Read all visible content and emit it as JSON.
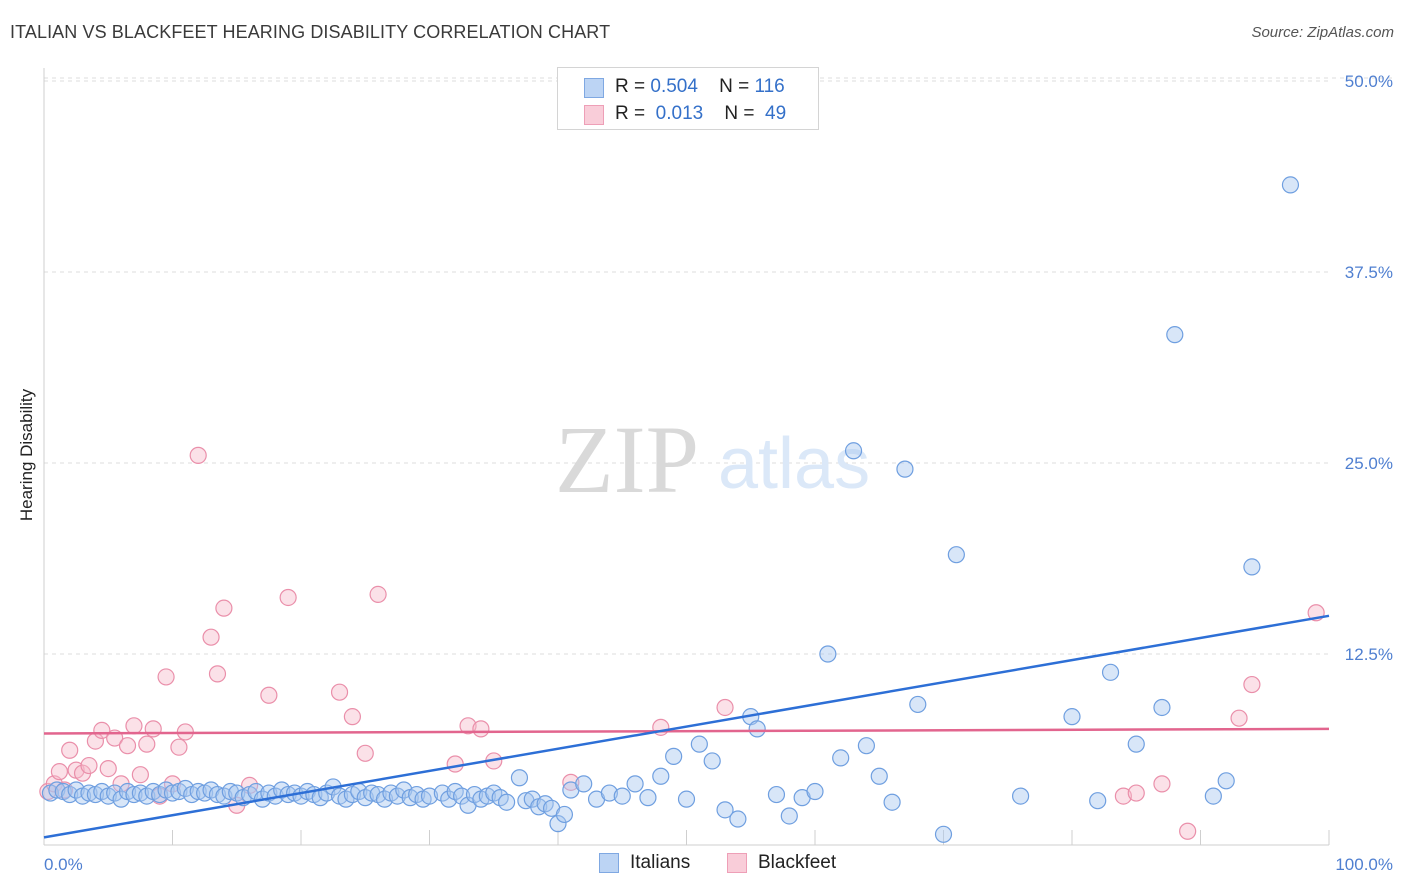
{
  "title": "ITALIAN VS BLACKFEET HEARING DISABILITY CORRELATION CHART",
  "source": "Source: ZipAtlas.com",
  "watermark": {
    "zip": "ZIP",
    "atlas": "atlas"
  },
  "legend": {
    "italians": {
      "r_label": "R =",
      "r_value": "0.504",
      "n_label": "N =",
      "n_value": "116"
    },
    "blackfeet": {
      "r_label": "R =",
      "r_value": "0.013",
      "n_label": "N =",
      "n_value": "49"
    }
  },
  "colors": {
    "italians_fill": "#a9c8f0",
    "italians_stroke": "#6f9fe0",
    "italians_line": "#2d6fd6",
    "blackfeet_fill": "#f6bccd",
    "blackfeet_stroke": "#ea8faa",
    "blackfeet_line": "#e2658e",
    "tick_label": "#4f7fd0",
    "grid": "#dcdcdc"
  },
  "chart_data": {
    "type": "scatter",
    "title": "ITALIAN VS BLACKFEET HEARING DISABILITY CORRELATION CHART",
    "xlabel": "",
    "ylabel": "Hearing Disability",
    "xlim": [
      0,
      100
    ],
    "ylim": [
      0,
      52
    ],
    "x_tick_labels": [
      "0.0%",
      "100.0%"
    ],
    "y_ticks": [
      12.5,
      25.0,
      37.5,
      50.0
    ],
    "y_tick_labels": [
      "12.5%",
      "25.0%",
      "37.5%",
      "50.0%"
    ],
    "series": [
      {
        "name": "Italians",
        "trend": {
          "x": [
            0,
            100
          ],
          "y": [
            0.5,
            15.0
          ]
        },
        "points": [
          [
            0.5,
            3.4
          ],
          [
            1,
            3.6
          ],
          [
            1.5,
            3.5
          ],
          [
            2,
            3.3
          ],
          [
            2.5,
            3.6
          ],
          [
            3,
            3.2
          ],
          [
            3.5,
            3.4
          ],
          [
            4,
            3.3
          ],
          [
            4.5,
            3.5
          ],
          [
            5,
            3.2
          ],
          [
            5.5,
            3.4
          ],
          [
            6,
            3.0
          ],
          [
            6.5,
            3.5
          ],
          [
            7,
            3.3
          ],
          [
            7.5,
            3.4
          ],
          [
            8,
            3.2
          ],
          [
            8.5,
            3.5
          ],
          [
            9,
            3.3
          ],
          [
            9.5,
            3.6
          ],
          [
            10,
            3.4
          ],
          [
            10.5,
            3.5
          ],
          [
            11,
            3.7
          ],
          [
            11.5,
            3.3
          ],
          [
            12,
            3.5
          ],
          [
            12.5,
            3.4
          ],
          [
            13,
            3.6
          ],
          [
            13.5,
            3.3
          ],
          [
            14,
            3.2
          ],
          [
            14.5,
            3.5
          ],
          [
            15,
            3.4
          ],
          [
            15.5,
            3.1
          ],
          [
            16,
            3.3
          ],
          [
            16.5,
            3.5
          ],
          [
            17,
            3.0
          ],
          [
            17.5,
            3.4
          ],
          [
            18,
            3.2
          ],
          [
            18.5,
            3.6
          ],
          [
            19,
            3.3
          ],
          [
            19.5,
            3.4
          ],
          [
            20,
            3.2
          ],
          [
            20.5,
            3.5
          ],
          [
            21,
            3.3
          ],
          [
            21.5,
            3.1
          ],
          [
            22,
            3.4
          ],
          [
            22.5,
            3.8
          ],
          [
            23,
            3.2
          ],
          [
            23.5,
            3.0
          ],
          [
            24,
            3.3
          ],
          [
            24.5,
            3.5
          ],
          [
            25,
            3.1
          ],
          [
            25.5,
            3.4
          ],
          [
            26,
            3.3
          ],
          [
            26.5,
            3.0
          ],
          [
            27,
            3.4
          ],
          [
            27.5,
            3.2
          ],
          [
            28,
            3.6
          ],
          [
            28.5,
            3.1
          ],
          [
            29,
            3.3
          ],
          [
            29.5,
            3.0
          ],
          [
            30,
            3.2
          ],
          [
            31,
            3.4
          ],
          [
            31.5,
            3.0
          ],
          [
            32,
            3.5
          ],
          [
            32.5,
            3.2
          ],
          [
            33,
            2.6
          ],
          [
            33.5,
            3.3
          ],
          [
            34,
            3.0
          ],
          [
            34.5,
            3.2
          ],
          [
            35,
            3.4
          ],
          [
            35.5,
            3.1
          ],
          [
            36,
            2.8
          ],
          [
            37,
            4.4
          ],
          [
            37.5,
            2.9
          ],
          [
            38,
            3.0
          ],
          [
            38.5,
            2.5
          ],
          [
            39,
            2.7
          ],
          [
            39.5,
            2.4
          ],
          [
            40,
            1.4
          ],
          [
            40.5,
            2.0
          ],
          [
            41,
            3.6
          ],
          [
            42,
            4.0
          ],
          [
            43,
            3.0
          ],
          [
            44,
            3.4
          ],
          [
            45,
            3.2
          ],
          [
            46,
            4.0
          ],
          [
            47,
            3.1
          ],
          [
            48,
            4.5
          ],
          [
            49,
            5.8
          ],
          [
            50,
            3.0
          ],
          [
            51,
            6.6
          ],
          [
            52,
            5.5
          ],
          [
            53,
            2.3
          ],
          [
            54,
            1.7
          ],
          [
            55,
            8.4
          ],
          [
            55.5,
            7.6
          ],
          [
            57,
            3.3
          ],
          [
            58,
            1.9
          ],
          [
            59,
            3.1
          ],
          [
            60,
            3.5
          ],
          [
            61,
            12.5
          ],
          [
            62,
            5.7
          ],
          [
            63,
            25.8
          ],
          [
            64,
            6.5
          ],
          [
            65,
            4.5
          ],
          [
            66,
            2.8
          ],
          [
            67,
            24.6
          ],
          [
            68,
            9.2
          ],
          [
            70,
            0.7
          ],
          [
            71,
            19.0
          ],
          [
            76,
            3.2
          ],
          [
            80,
            8.4
          ],
          [
            82,
            2.9
          ],
          [
            83,
            11.3
          ],
          [
            85,
            6.6
          ],
          [
            87,
            9.0
          ],
          [
            88,
            33.4
          ],
          [
            91,
            3.2
          ],
          [
            94,
            18.2
          ],
          [
            97,
            43.2
          ],
          [
            92,
            4.2
          ]
        ]
      },
      {
        "name": "Blackfeet",
        "trend": {
          "x": [
            0,
            100
          ],
          "y": [
            7.3,
            7.6
          ]
        },
        "points": [
          [
            0.3,
            3.5
          ],
          [
            0.8,
            4.0
          ],
          [
            1.2,
            4.8
          ],
          [
            1.6,
            3.6
          ],
          [
            2,
            6.2
          ],
          [
            2.5,
            4.9
          ],
          [
            3,
            4.7
          ],
          [
            3.5,
            5.2
          ],
          [
            4,
            6.8
          ],
          [
            4.5,
            7.5
          ],
          [
            5,
            5.0
          ],
          [
            5.5,
            7.0
          ],
          [
            6,
            4.0
          ],
          [
            6.5,
            6.5
          ],
          [
            7,
            7.8
          ],
          [
            7.5,
            4.6
          ],
          [
            8,
            6.6
          ],
          [
            8.5,
            7.6
          ],
          [
            9,
            3.2
          ],
          [
            9.5,
            11.0
          ],
          [
            10,
            4.0
          ],
          [
            10.5,
            6.4
          ],
          [
            11,
            7.4
          ],
          [
            12,
            25.5
          ],
          [
            13,
            13.6
          ],
          [
            13.5,
            11.2
          ],
          [
            14,
            15.5
          ],
          [
            15,
            2.6
          ],
          [
            16,
            3.9
          ],
          [
            17.5,
            9.8
          ],
          [
            19,
            16.2
          ],
          [
            23,
            10.0
          ],
          [
            24,
            8.4
          ],
          [
            25,
            6.0
          ],
          [
            26,
            16.4
          ],
          [
            32,
            5.3
          ],
          [
            33,
            7.8
          ],
          [
            34,
            7.6
          ],
          [
            35,
            5.5
          ],
          [
            41,
            4.1
          ],
          [
            48,
            7.7
          ],
          [
            53,
            9.0
          ],
          [
            84,
            3.2
          ],
          [
            85,
            3.4
          ],
          [
            87,
            4.0
          ],
          [
            89,
            0.9
          ],
          [
            93,
            8.3
          ],
          [
            94,
            10.5
          ],
          [
            99,
            15.2
          ]
        ]
      }
    ]
  }
}
